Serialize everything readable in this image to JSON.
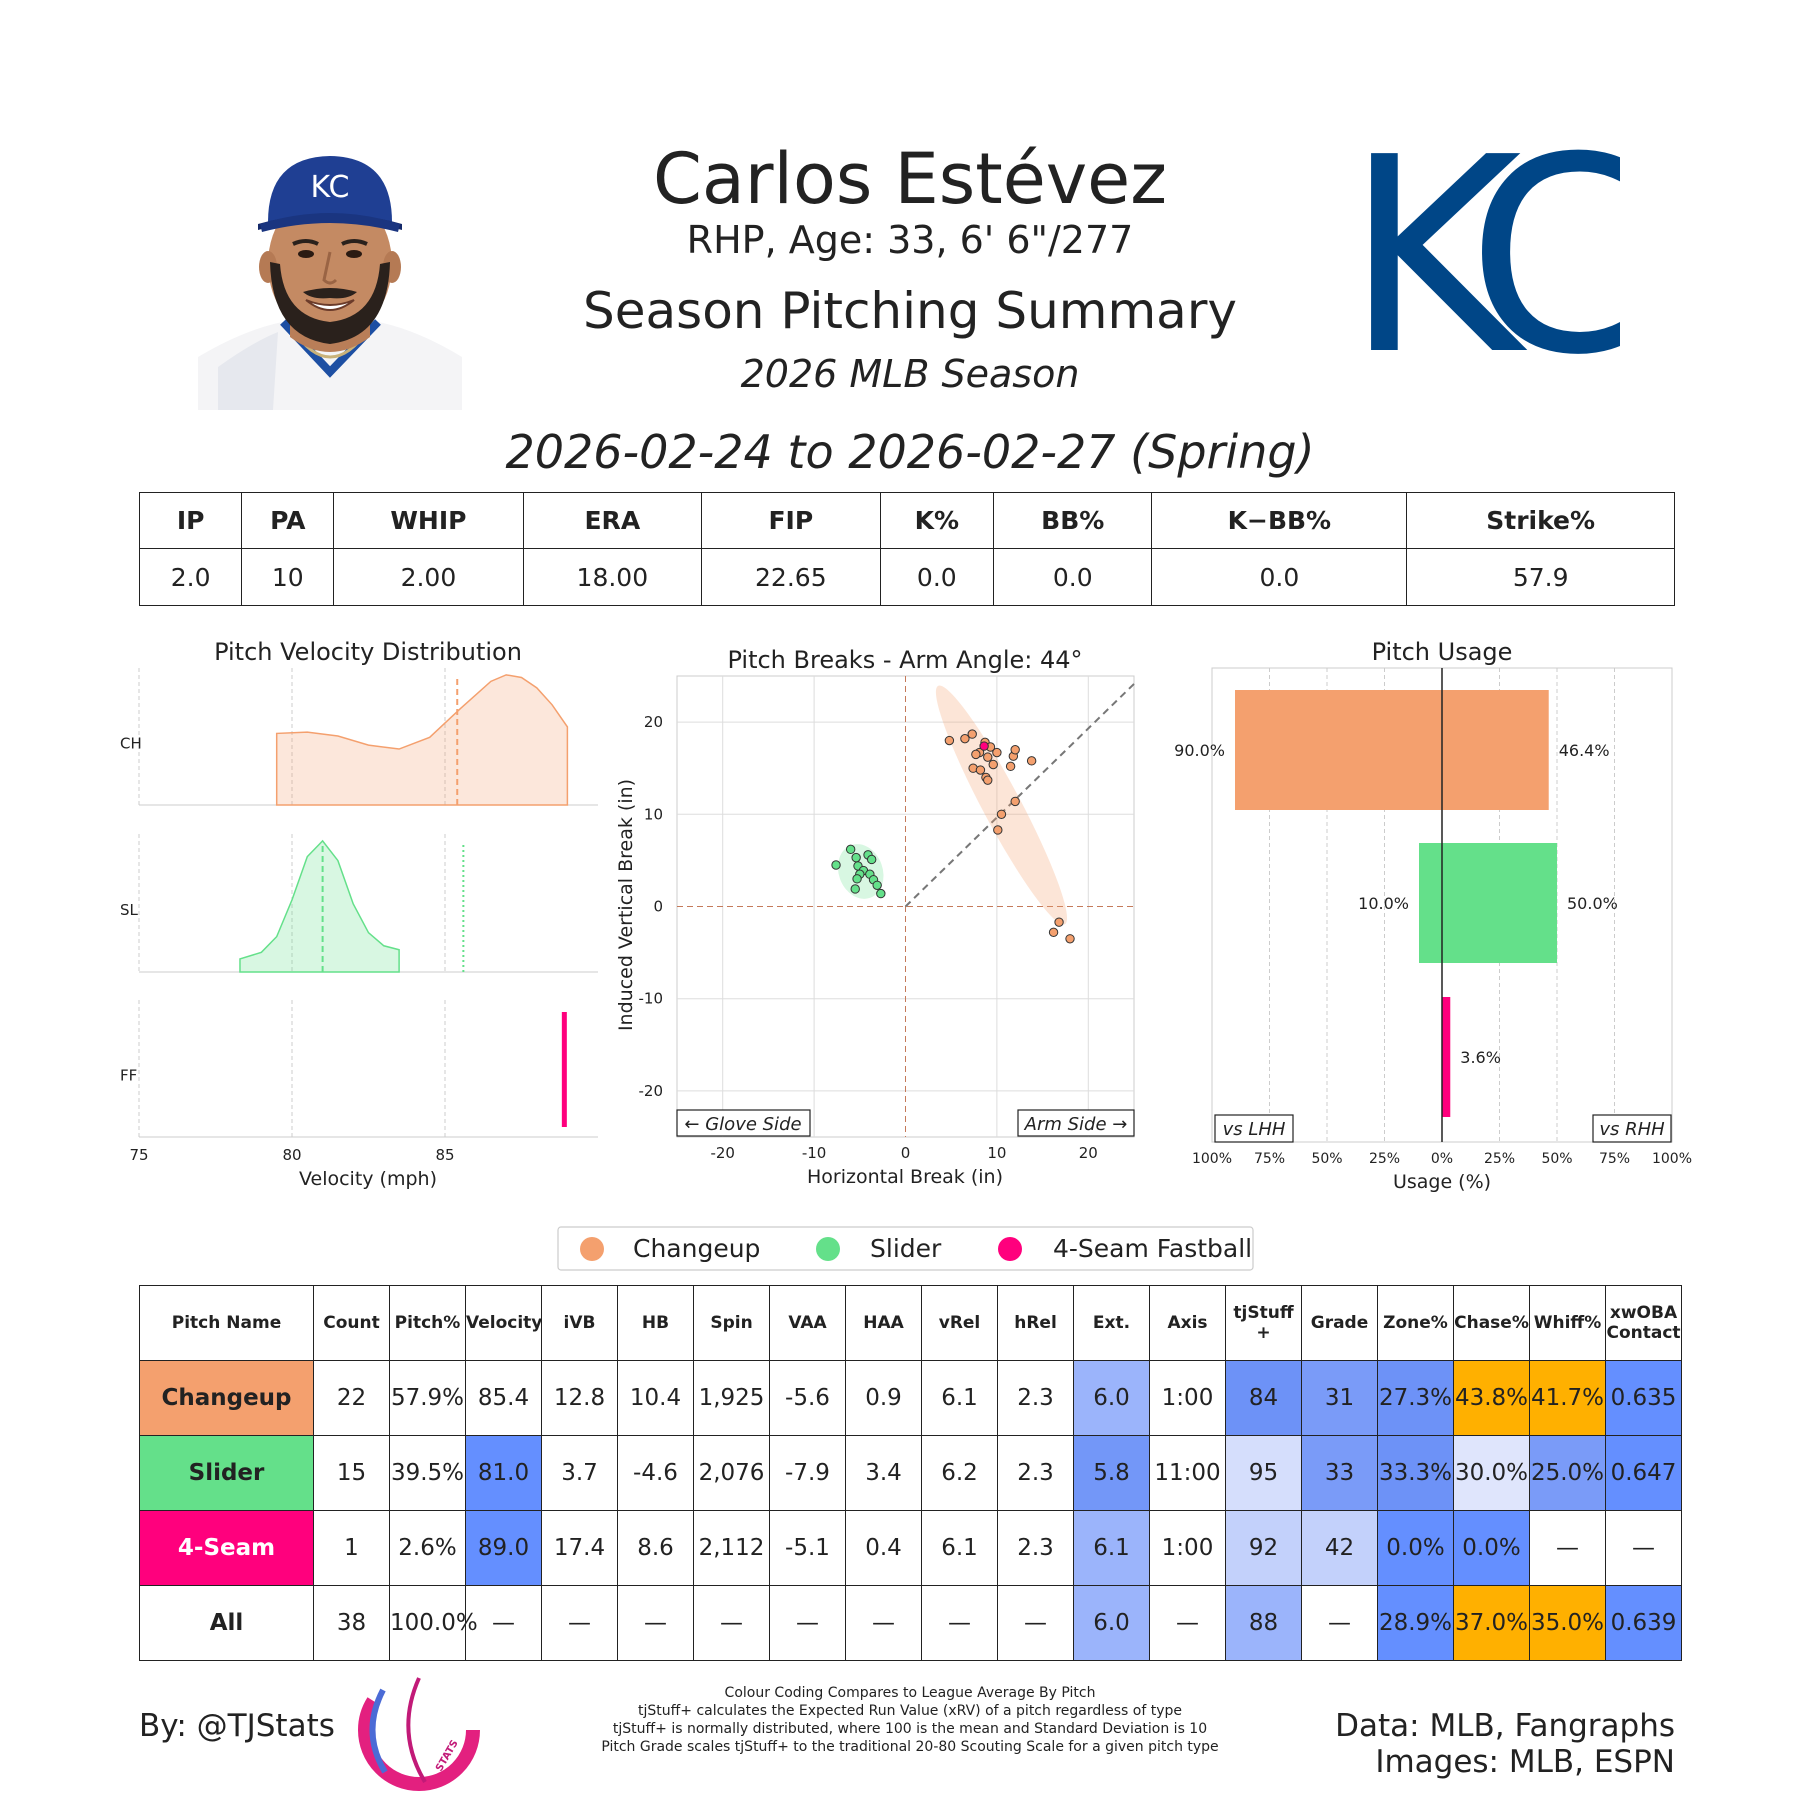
{
  "header": {
    "name": "Carlos Estévez",
    "bio": "RHP, Age: 33, 6' 6\"/277",
    "title": "Season Pitching Summary",
    "season": "2026 MLB Season",
    "date_range": "2026-02-24 to 2026-02-27 (Spring)",
    "team_logo_text": "KC",
    "cap_logo_text": "KC"
  },
  "summary_stats": {
    "headers": [
      "IP",
      "PA",
      "WHIP",
      "ERA",
      "FIP",
      "K%",
      "BB%",
      "K−BB%",
      "Strike%"
    ],
    "values": [
      "2.0",
      "10",
      "2.00",
      "18.00",
      "22.65",
      "0.0",
      "0.0",
      "0.0",
      "57.9"
    ]
  },
  "colors": {
    "changeup": "#F4A06E",
    "slider": "#64E08A",
    "fastball": "#FF007D",
    "grid": "#cccccc"
  },
  "chart_data": [
    {
      "type": "area",
      "title": "Pitch Velocity Distribution",
      "xlabel": "Velocity (mph)",
      "xlim": [
        75,
        90
      ],
      "xticks": [
        "75",
        "80",
        "85"
      ],
      "series": [
        {
          "name": "CH",
          "color": "#F4A06E",
          "x": [
            79.5,
            80.5,
            81.5,
            82.5,
            83.5,
            84.5,
            85.5,
            86.5,
            87.0,
            87.5,
            88.0,
            88.5,
            89.0
          ],
          "y": [
            0.55,
            0.56,
            0.53,
            0.46,
            0.43,
            0.52,
            0.74,
            0.95,
            1.0,
            0.98,
            0.9,
            0.77,
            0.6
          ],
          "mean": 85.4
        },
        {
          "name": "SL",
          "color": "#64E08A",
          "x": [
            78.3,
            79.0,
            79.5,
            80.0,
            80.5,
            81.0,
            81.5,
            82.0,
            82.5,
            83.0,
            83.5
          ],
          "y": [
            0.1,
            0.15,
            0.27,
            0.55,
            0.88,
            1.0,
            0.85,
            0.52,
            0.3,
            0.2,
            0.17
          ],
          "mean": 81.0,
          "league_mean": 85.6
        },
        {
          "name": "FF",
          "color": "#FF007D",
          "x": [
            88.9
          ],
          "y": [
            1.0
          ],
          "mean": 89.0
        }
      ]
    },
    {
      "type": "scatter",
      "title": "Pitch Breaks - Arm Angle: 44°",
      "xlabel": "Horizontal Break (in)",
      "ylabel": "Induced Vertical Break (in)",
      "xlim": [
        -25,
        25
      ],
      "ylim": [
        -25,
        25
      ],
      "xticks": [
        "-20",
        "-10",
        "0",
        "10",
        "20"
      ],
      "yticks": [
        "20",
        "10",
        "0",
        "-10",
        "-20"
      ],
      "arm_angle_deg": 44,
      "left_annotation": "← Glove Side",
      "right_annotation": "Arm Side →",
      "series": [
        {
          "name": "Changeup",
          "color": "#F4A06E",
          "points": [
            [
              4.8,
              18
            ],
            [
              6.5,
              18.2
            ],
            [
              7.3,
              18.7
            ],
            [
              8.1,
              16.7
            ],
            [
              8.7,
              17.8
            ],
            [
              9.3,
              17.3
            ],
            [
              7.7,
              16.5
            ],
            [
              9.0,
              16.2
            ],
            [
              10.0,
              16.7
            ],
            [
              11.8,
              16.3
            ],
            [
              12.0,
              17.0
            ],
            [
              13.8,
              15.8
            ],
            [
              11.5,
              15.2
            ],
            [
              9.6,
              15.4
            ],
            [
              7.4,
              15.0
            ],
            [
              8.2,
              14.8
            ],
            [
              8.8,
              14.0
            ],
            [
              9.0,
              13.7
            ],
            [
              10.5,
              10.0
            ],
            [
              10.1,
              8.3
            ],
            [
              12.0,
              11.4
            ],
            [
              16.8,
              -1.7
            ],
            [
              16.2,
              -2.8
            ],
            [
              18.0,
              -3.5
            ]
          ]
        },
        {
          "name": "Slider",
          "color": "#64E08A",
          "points": [
            [
              -7.6,
              4.5
            ],
            [
              -6.0,
              6.2
            ],
            [
              -5.4,
              5.3
            ],
            [
              -4.1,
              5.6
            ],
            [
              -3.7,
              5.1
            ],
            [
              -5.2,
              4.4
            ],
            [
              -4.6,
              3.9
            ],
            [
              -3.9,
              3.5
            ],
            [
              -5.0,
              3.5
            ],
            [
              -3.5,
              2.9
            ],
            [
              -5.3,
              3.0
            ],
            [
              -3.1,
              2.3
            ],
            [
              -5.5,
              1.9
            ],
            [
              -2.7,
              1.4
            ]
          ]
        },
        {
          "name": "4-Seam Fastball",
          "color": "#FF007D",
          "points": [
            [
              8.6,
              17.4
            ]
          ]
        }
      ]
    },
    {
      "type": "bar",
      "title": "Pitch Usage",
      "xlabel": "Usage (%)",
      "xlim": [
        -100,
        100
      ],
      "xticks": [
        "100%",
        "75%",
        "50%",
        "25%",
        "0%",
        "25%",
        "50%",
        "75%",
        "100%"
      ],
      "left_label": "vs LHH",
      "right_label": "vs RHH",
      "categories": [
        "Changeup",
        "Slider",
        "4-Seam Fastball"
      ],
      "series": [
        {
          "name": "vs LHH",
          "values": [
            90.0,
            10.0,
            0.0
          ],
          "labels": [
            "90.0%",
            "10.0%",
            ""
          ]
        },
        {
          "name": "vs RHH",
          "values": [
            46.4,
            50.0,
            3.6
          ],
          "labels": [
            "46.4%",
            "50.0%",
            "3.6%"
          ]
        }
      ]
    }
  ],
  "legend": {
    "items": [
      {
        "label": "Changeup",
        "color": "#F4A06E"
      },
      {
        "label": "Slider",
        "color": "#64E08A"
      },
      {
        "label": "4-Seam Fastball",
        "color": "#FF007D"
      }
    ]
  },
  "pitch_table": {
    "headers": [
      "Pitch Name",
      "Count",
      "Pitch%",
      "Velocity",
      "iVB",
      "HB",
      "Spin",
      "VAA",
      "HAA",
      "vRel",
      "hRel",
      "Ext.",
      "Axis",
      "tjStuff +",
      "Grade",
      "Zone%",
      "Chase%",
      "Whiff%",
      "xwOBA Contact"
    ],
    "rows": [
      {
        "cells": [
          "Changeup",
          "22",
          "57.9%",
          "85.4",
          "12.8",
          "10.4",
          "1,925",
          "-5.6",
          "0.9",
          "6.1",
          "2.3",
          "6.0",
          "1:00",
          "84",
          "31",
          "27.3%",
          "43.8%",
          "41.7%",
          "0.635"
        ],
        "colors": [
          "#F4A06E",
          "#fff",
          "#fff",
          "#fff",
          "#fff",
          "#fff",
          "#fff",
          "#fff",
          "#fff",
          "#fff",
          "#fff",
          "#9bb4fb",
          "#fff",
          "#6d92f7",
          "#7a9bf8",
          "#6d92f7",
          "#FFB000",
          "#FFB000",
          "#648FFF"
        ]
      },
      {
        "cells": [
          "Slider",
          "15",
          "39.5%",
          "81.0",
          "3.7",
          "-4.6",
          "2,076",
          "-7.9",
          "3.4",
          "6.2",
          "2.3",
          "5.8",
          "11:00",
          "95",
          "33",
          "33.3%",
          "30.0%",
          "25.0%",
          "0.647"
        ],
        "colors": [
          "#64E08A",
          "#fff",
          "#fff",
          "#648FFF",
          "#fff",
          "#fff",
          "#fff",
          "#fff",
          "#fff",
          "#fff",
          "#fff",
          "#7397f8",
          "#fff",
          "#d5defc",
          "#7a9bf8",
          "#6d92f7",
          "#dfe5fc",
          "#7a9bf8",
          "#648FFF"
        ]
      },
      {
        "cells": [
          "4-Seam",
          "1",
          "2.6%",
          "89.0",
          "17.4",
          "8.6",
          "2,112",
          "-5.1",
          "0.4",
          "6.1",
          "2.3",
          "6.1",
          "1:00",
          "92",
          "42",
          "0.0%",
          "0.0%",
          "—",
          "—"
        ],
        "colors": [
          "#FF007D",
          "#fff",
          "#fff",
          "#648FFF",
          "#fff",
          "#fff",
          "#fff",
          "#fff",
          "#fff",
          "#fff",
          "#fff",
          "#9bb4fb",
          "#fff",
          "#c3d1fb",
          "#c3d1fb",
          "#648FFF",
          "#648FFF",
          "#fff",
          "#fff"
        ]
      },
      {
        "cells": [
          "All",
          "38",
          "100.0%",
          "—",
          "—",
          "—",
          "—",
          "—",
          "—",
          "—",
          "—",
          "6.0",
          "—",
          "88",
          "—",
          "28.9%",
          "37.0%",
          "35.0%",
          "0.639"
        ],
        "colors": [
          "#fff",
          "#fff",
          "#fff",
          "#fff",
          "#fff",
          "#fff",
          "#fff",
          "#fff",
          "#fff",
          "#fff",
          "#fff",
          "#9bb4fb",
          "#fff",
          "#9bb4fb",
          "#fff",
          "#648FFF",
          "#FFB000",
          "#FFB000",
          "#648FFF"
        ]
      }
    ]
  },
  "footer": {
    "by": "By: @TJStats",
    "data_source": "Data: MLB, Fangraphs",
    "images_source": "Images: MLB, ESPN",
    "logo_text": "STATS",
    "notes": [
      "Colour Coding Compares to League Average By Pitch",
      "tjStuff+ calculates the Expected Run Value (xRV) of a pitch regardless of type",
      "tjStuff+ is normally distributed, where 100 is the mean and Standard Deviation is 10",
      "Pitch Grade scales tjStuff+ to the traditional 20-80 Scouting Scale for a given pitch type"
    ]
  }
}
